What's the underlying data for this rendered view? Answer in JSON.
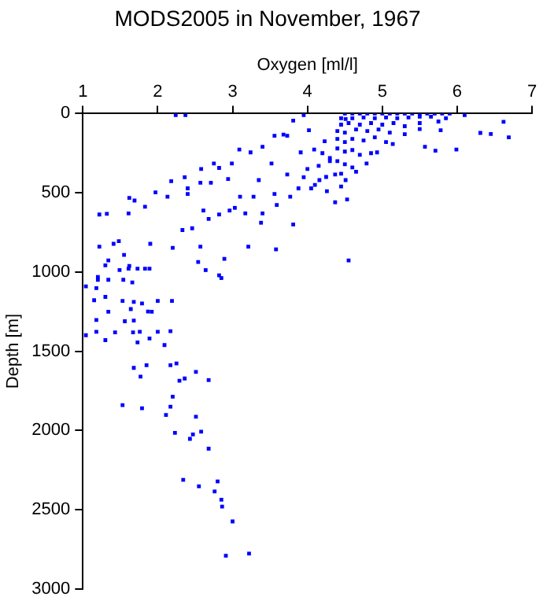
{
  "chart_data": {
    "type": "scatter",
    "title": "MODS2005 in November, 1967",
    "xlabel": "Oxygen [ml/l]",
    "ylabel": "Depth [m]",
    "color": "#0000ff",
    "marker": "square",
    "xlim": [
      1,
      7
    ],
    "xticks": [
      1,
      2,
      3,
      4,
      5,
      6,
      7
    ],
    "ylim": [
      3000,
      0
    ],
    "yticks": [
      0,
      500,
      1000,
      1500,
      2000,
      2500,
      3000
    ],
    "x": [
      1.68,
      1.77,
      1.85,
      2.17,
      2.25,
      2.29,
      2.36,
      2.51,
      2.68,
      2.2,
      1.53,
      1.79,
      2.11,
      2.17,
      2.51,
      2.23,
      2.43,
      2.47,
      2.58,
      2.68,
      2.34,
      2.55,
      2.8,
      2.76,
      2.85,
      2.86,
      3.0,
      2.91,
      3.22,
      1.04,
      1.18,
      1.15,
      1.3,
      1.34,
      1.18,
      1.04,
      1.18,
      1.3,
      1.43,
      1.56,
      1.67,
      1.73,
      1.76,
      1.89,
      2.0,
      2.09,
      2.17,
      1.53,
      1.68,
      1.79,
      1.64,
      1.87,
      1.92,
      2.0,
      2.19,
      1.68,
      1.61,
      1.73,
      1.89,
      1.49,
      1.2,
      1.34,
      1.54,
      1.66,
      2.64,
      2.85,
      1.3,
      2.24,
      2.37,
      1.22,
      1.32,
      1.22,
      1.62,
      1.69,
      1.61,
      1.83,
      1.97,
      2.18,
      2.36,
      2.58,
      2.75,
      2.82,
      2.94,
      2.99,
      3.09,
      3.24,
      3.4,
      3.56,
      3.68,
      3.81,
      3.95,
      2.13,
      2.4,
      2.61,
      2.82,
      3.03,
      3.17,
      3.28,
      3.4,
      3.38,
      3.59,
      3.77,
      3.88,
      3.95,
      4.05,
      4.16,
      4.26,
      4.37,
      4.53,
      4.55,
      3.81,
      3.58,
      3.21,
      2.89,
      2.57,
      2.2,
      1.9,
      1.48,
      1.41,
      1.55,
      1.34,
      1.62,
      1.83,
      1.2,
      2.54,
      2.82,
      2.33,
      2.46,
      2.68,
      2.96,
      2.57,
      2.71,
      2.4,
      3.1,
      3.35,
      3.56,
      3.73,
      3.52,
      3.91,
      4.09,
      4.3,
      4.37,
      4.51,
      4.65,
      4.79,
      4.93,
      5.14,
      5.57,
      5.71,
      5.99,
      6.31,
      6.45,
      6.69,
      6.62,
      6.1,
      5.78,
      5.5,
      4.23,
      4.02,
      3.73,
      4.51,
      4.5,
      4.6,
      4.7,
      4.8,
      4.9,
      5.0,
      5.1,
      5.2,
      5.3,
      5.4,
      5.5,
      5.6,
      5.7,
      5.8,
      5.9,
      4.45,
      4.6,
      4.75,
      4.9,
      5.05,
      5.2,
      5.35,
      5.5,
      5.65,
      5.85,
      4.45,
      4.55,
      4.7,
      4.85,
      5.0,
      5.15,
      5.3,
      5.5,
      5.75,
      4.4,
      4.5,
      4.65,
      4.8,
      4.95,
      5.1,
      5.3,
      4.4,
      4.5,
      4.6,
      4.75,
      4.9,
      5.05,
      4.4,
      4.5,
      4.6,
      4.7,
      4.85,
      4.4,
      4.5,
      4.6,
      4.45,
      4.2,
      4.3,
      4.15,
      4.0,
      4.25,
      4.1,
      4.45
    ],
    "values": [
      1605,
      1660,
      1588,
      1588,
      1577,
      1686,
      1672,
      1630,
      1682,
      1787,
      1840,
      1860,
      1902,
      1850,
      1913,
      2015,
      2053,
      2025,
      2008,
      2115,
      2312,
      2353,
      2322,
      2385,
      2437,
      2480,
      2574,
      2791,
      2777,
      1091,
      1102,
      1178,
      1157,
      1251,
      1303,
      1399,
      1377,
      1430,
      1381,
      1311,
      1381,
      1444,
      1377,
      1419,
      1377,
      1461,
      1374,
      1182,
      1189,
      1199,
      1234,
      1249,
      1251,
      1182,
      1182,
      1307,
      979,
      979,
      979,
      988,
      1049,
      1049,
      1049,
      1066,
      988,
      1038,
      958,
      10,
      10,
      637,
      633,
      840,
      532,
      549,
      630,
      588,
      497,
      427,
      402,
      350,
      315,
      343,
      413,
      315,
      227,
      245,
      210,
      140,
      133,
      45,
      10,
      525,
      507,
      612,
      637,
      595,
      630,
      525,
      630,
      689,
      577,
      525,
      472,
      402,
      472,
      420,
      490,
      560,
      542,
      927,
      700,
      857,
      840,
      917,
      840,
      847,
      822,
      805,
      822,
      892,
      927,
      962,
      979,
      1031,
      937,
      1021,
      735,
      724,
      665,
      612,
      437,
      437,
      472,
      525,
      420,
      507,
      385,
      315,
      245,
      227,
      280,
      385,
      420,
      367,
      315,
      245,
      192,
      210,
      234,
      227,
      122,
      129,
      150,
      52,
      10,
      105,
      98,
      175,
      105,
      140,
      35,
      0,
      0,
      0,
      0,
      0,
      0,
      0,
      0,
      0,
      0,
      0,
      0,
      0,
      0,
      0,
      30,
      30,
      25,
      30,
      25,
      30,
      25,
      20,
      20,
      30,
      70,
      60,
      70,
      60,
      70,
      60,
      80,
      60,
      50,
      110,
      120,
      100,
      110,
      100,
      120,
      130,
      160,
      180,
      160,
      170,
      150,
      180,
      220,
      240,
      230,
      260,
      250,
      300,
      320,
      340,
      380,
      250,
      300,
      330,
      350,
      400,
      450,
      460
    ]
  }
}
